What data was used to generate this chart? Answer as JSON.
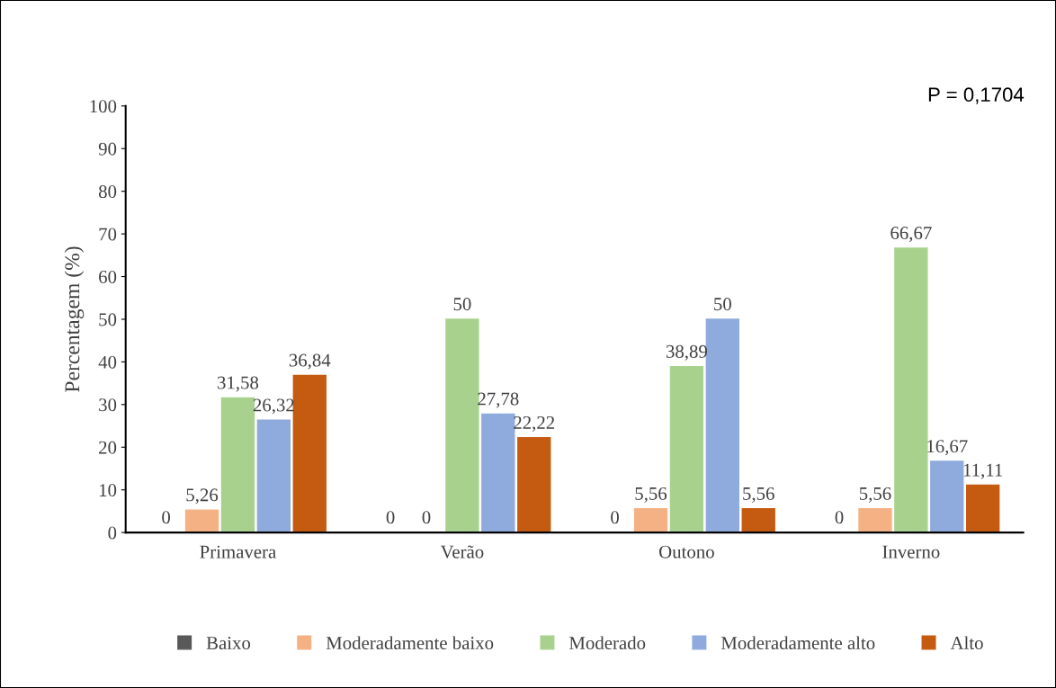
{
  "chart_data": {
    "type": "bar",
    "ylabel": "Percentagem (%)",
    "categories": [
      "Primavera",
      "Verão",
      "Outono",
      "Inverno"
    ],
    "ylim": [
      0,
      100
    ],
    "yticks": [
      0,
      10,
      20,
      30,
      40,
      50,
      60,
      70,
      80,
      90,
      100
    ],
    "grid": false,
    "legend": "bottom",
    "annotations": [
      "P = 0,1704"
    ],
    "series": [
      {
        "name": "Baixo",
        "color": "#595959",
        "values": [
          0,
          0,
          0,
          0
        ],
        "value_labels": [
          "0",
          "0",
          "0",
          "0"
        ]
      },
      {
        "name": "Moderadamente baixo",
        "color": "#f4b183",
        "values": [
          5.26,
          0,
          5.56,
          5.56
        ],
        "value_labels": [
          "5,26",
          "0",
          "5,56",
          "5,56"
        ]
      },
      {
        "name": "Moderado",
        "color": "#a9d18e",
        "values": [
          31.58,
          50,
          38.89,
          66.67
        ],
        "value_labels": [
          "31,58",
          "50",
          "38,89",
          "66,67"
        ]
      },
      {
        "name": "Moderadamente alto",
        "color": "#8faadc",
        "values": [
          26.32,
          27.78,
          50,
          16.67
        ],
        "value_labels": [
          "26,32",
          "27,78",
          "50",
          "16,67"
        ]
      },
      {
        "name": "Alto",
        "color": "#c55a11",
        "values": [
          36.84,
          22.22,
          5.56,
          11.11
        ],
        "value_labels": [
          "36,84",
          "22,22",
          "5,56",
          "11,11"
        ]
      }
    ]
  }
}
